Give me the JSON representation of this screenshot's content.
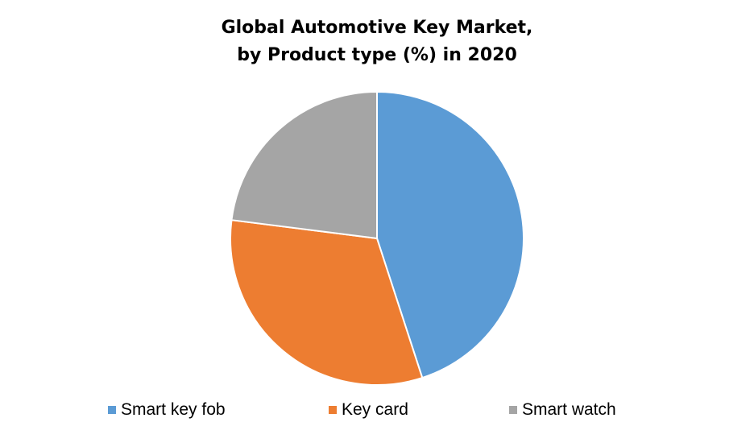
{
  "chart_data": {
    "type": "pie",
    "title": "Global Automotive Key Market,",
    "subtitle": "by Product type (%) in 2020",
    "categories": [
      "Smart key fob",
      "Key card",
      "Smart watch"
    ],
    "values": [
      45,
      32,
      23
    ],
    "colors": [
      "#5B9BD5",
      "#ED7D31",
      "#A5A5A5"
    ],
    "legend_position": "bottom"
  }
}
